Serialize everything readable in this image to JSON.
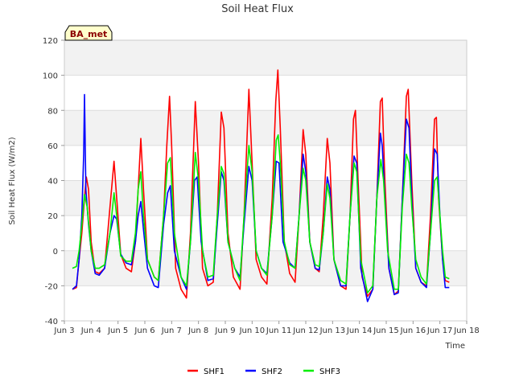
{
  "chart_data": {
    "type": "line",
    "title": "Soil Heat Flux",
    "xlabel": "Time",
    "ylabel": "Soil Heat Flux (W/m2)",
    "badge": "BA_met",
    "xlim": [
      3,
      18
    ],
    "ylim": [
      -40,
      120
    ],
    "yticks": [
      -40,
      -20,
      0,
      20,
      40,
      60,
      80,
      100,
      120
    ],
    "xticks": [
      {
        "v": 3,
        "label": "Jun 3"
      },
      {
        "v": 4,
        "label": "Jun 4"
      },
      {
        "v": 5,
        "label": "Jun 5"
      },
      {
        "v": 6,
        "label": "Jun 6"
      },
      {
        "v": 7,
        "label": "Jun 7"
      },
      {
        "v": 8,
        "label": "Jun 8"
      },
      {
        "v": 9,
        "label": "Jun 9"
      },
      {
        "v": 10,
        "label": "Jun 10"
      },
      {
        "v": 11,
        "label": "Jun 11"
      },
      {
        "v": 12,
        "label": "Jun 12"
      },
      {
        "v": 13,
        "label": "Jun 13"
      },
      {
        "v": 14,
        "label": "Jun 14"
      },
      {
        "v": 15,
        "label": "Jun 15"
      },
      {
        "v": 16,
        "label": "Jun 16"
      },
      {
        "v": 17,
        "label": "Jun 17"
      },
      {
        "v": 18,
        "label": "Jun 18"
      }
    ],
    "grid": true,
    "legend_position": "bottom-center",
    "series": [
      {
        "name": "SHF1",
        "color": "#ff0000",
        "points": [
          [
            3.3,
            -22
          ],
          [
            3.45,
            -21
          ],
          [
            3.55,
            -5
          ],
          [
            3.65,
            10
          ],
          [
            3.75,
            30
          ],
          [
            3.82,
            42
          ],
          [
            3.9,
            35
          ],
          [
            4.0,
            5
          ],
          [
            4.15,
            -12
          ],
          [
            4.3,
            -13
          ],
          [
            4.5,
            -10
          ],
          [
            4.7,
            25
          ],
          [
            4.85,
            51
          ],
          [
            4.95,
            30
          ],
          [
            5.1,
            -2
          ],
          [
            5.3,
            -10
          ],
          [
            5.5,
            -12
          ],
          [
            5.65,
            5
          ],
          [
            5.75,
            35
          ],
          [
            5.85,
            64
          ],
          [
            5.95,
            35
          ],
          [
            6.1,
            -5
          ],
          [
            6.35,
            -15
          ],
          [
            6.5,
            -17
          ],
          [
            6.7,
            20
          ],
          [
            6.82,
            60
          ],
          [
            6.92,
            88
          ],
          [
            7.0,
            60
          ],
          [
            7.15,
            -10
          ],
          [
            7.35,
            -22
          ],
          [
            7.55,
            -27
          ],
          [
            7.7,
            10
          ],
          [
            7.88,
            85
          ],
          [
            8.0,
            50
          ],
          [
            8.15,
            -10
          ],
          [
            8.35,
            -20
          ],
          [
            8.55,
            -18
          ],
          [
            8.7,
            20
          ],
          [
            8.85,
            79
          ],
          [
            8.95,
            70
          ],
          [
            9.1,
            10
          ],
          [
            9.3,
            -15
          ],
          [
            9.55,
            -22
          ],
          [
            9.7,
            20
          ],
          [
            9.88,
            92
          ],
          [
            10.0,
            50
          ],
          [
            10.15,
            -5
          ],
          [
            10.35,
            -15
          ],
          [
            10.55,
            -19
          ],
          [
            10.75,
            30
          ],
          [
            10.88,
            85
          ],
          [
            10.96,
            103
          ],
          [
            11.05,
            70
          ],
          [
            11.2,
            5
          ],
          [
            11.4,
            -13
          ],
          [
            11.6,
            -18
          ],
          [
            11.75,
            20
          ],
          [
            11.9,
            69
          ],
          [
            12.0,
            55
          ],
          [
            12.15,
            5
          ],
          [
            12.35,
            -10
          ],
          [
            12.5,
            -12
          ],
          [
            12.65,
            20
          ],
          [
            12.8,
            64
          ],
          [
            12.9,
            50
          ],
          [
            13.05,
            -5
          ],
          [
            13.3,
            -20
          ],
          [
            13.5,
            -22
          ],
          [
            13.65,
            20
          ],
          [
            13.78,
            75
          ],
          [
            13.85,
            80
          ],
          [
            13.95,
            40
          ],
          [
            14.1,
            -15
          ],
          [
            14.3,
            -26
          ],
          [
            14.5,
            -22
          ],
          [
            14.65,
            30
          ],
          [
            14.78,
            85
          ],
          [
            14.85,
            87
          ],
          [
            14.95,
            40
          ],
          [
            15.1,
            -10
          ],
          [
            15.3,
            -25
          ],
          [
            15.45,
            -23
          ],
          [
            15.6,
            30
          ],
          [
            15.75,
            88
          ],
          [
            15.82,
            92
          ],
          [
            15.95,
            40
          ],
          [
            16.1,
            -10
          ],
          [
            16.3,
            -18
          ],
          [
            16.5,
            -20
          ],
          [
            16.65,
            20
          ],
          [
            16.8,
            75
          ],
          [
            16.87,
            76
          ],
          [
            16.95,
            30
          ],
          [
            17.1,
            -5
          ],
          [
            17.2,
            -17
          ],
          [
            17.35,
            -18
          ]
        ]
      },
      {
        "name": "SHF2",
        "color": "#0000ff",
        "points": [
          [
            3.3,
            -22
          ],
          [
            3.45,
            -20
          ],
          [
            3.55,
            -5
          ],
          [
            3.65,
            20
          ],
          [
            3.72,
            55
          ],
          [
            3.75,
            89
          ],
          [
            3.8,
            35
          ],
          [
            3.9,
            15
          ],
          [
            4.0,
            0
          ],
          [
            4.15,
            -13
          ],
          [
            4.3,
            -14
          ],
          [
            4.5,
            -10
          ],
          [
            4.7,
            10
          ],
          [
            4.85,
            20
          ],
          [
            4.95,
            18
          ],
          [
            5.1,
            -2
          ],
          [
            5.3,
            -7
          ],
          [
            5.5,
            -8
          ],
          [
            5.65,
            5
          ],
          [
            5.75,
            20
          ],
          [
            5.85,
            28
          ],
          [
            5.95,
            12
          ],
          [
            6.1,
            -10
          ],
          [
            6.35,
            -20
          ],
          [
            6.5,
            -21
          ],
          [
            6.7,
            15
          ],
          [
            6.85,
            33
          ],
          [
            6.95,
            37
          ],
          [
            7.1,
            0
          ],
          [
            7.35,
            -15
          ],
          [
            7.55,
            -22
          ],
          [
            7.7,
            5
          ],
          [
            7.85,
            40
          ],
          [
            7.95,
            42
          ],
          [
            8.1,
            5
          ],
          [
            8.35,
            -17
          ],
          [
            8.55,
            -16
          ],
          [
            8.7,
            15
          ],
          [
            8.85,
            45
          ],
          [
            8.95,
            40
          ],
          [
            9.1,
            5
          ],
          [
            9.35,
            -10
          ],
          [
            9.55,
            -15
          ],
          [
            9.7,
            15
          ],
          [
            9.88,
            48
          ],
          [
            10.0,
            40
          ],
          [
            10.15,
            0
          ],
          [
            10.35,
            -10
          ],
          [
            10.55,
            -13
          ],
          [
            10.75,
            20
          ],
          [
            10.9,
            51
          ],
          [
            11.0,
            50
          ],
          [
            11.15,
            5
          ],
          [
            11.4,
            -7
          ],
          [
            11.6,
            -10
          ],
          [
            11.75,
            20
          ],
          [
            11.9,
            55
          ],
          [
            12.0,
            45
          ],
          [
            12.15,
            5
          ],
          [
            12.35,
            -10
          ],
          [
            12.5,
            -11
          ],
          [
            12.65,
            10
          ],
          [
            12.8,
            42
          ],
          [
            12.9,
            35
          ],
          [
            13.05,
            -5
          ],
          [
            13.3,
            -20
          ],
          [
            13.5,
            -20
          ],
          [
            13.65,
            20
          ],
          [
            13.8,
            54
          ],
          [
            13.9,
            50
          ],
          [
            14.05,
            -10
          ],
          [
            14.3,
            -29
          ],
          [
            14.5,
            -22
          ],
          [
            14.65,
            30
          ],
          [
            14.78,
            67
          ],
          [
            14.85,
            60
          ],
          [
            14.95,
            30
          ],
          [
            15.1,
            -10
          ],
          [
            15.3,
            -25
          ],
          [
            15.45,
            -24
          ],
          [
            15.6,
            30
          ],
          [
            15.75,
            75
          ],
          [
            15.85,
            70
          ],
          [
            15.95,
            30
          ],
          [
            16.1,
            -10
          ],
          [
            16.3,
            -18
          ],
          [
            16.5,
            -21
          ],
          [
            16.65,
            10
          ],
          [
            16.8,
            58
          ],
          [
            16.9,
            55
          ],
          [
            17.0,
            20
          ],
          [
            17.1,
            -5
          ],
          [
            17.2,
            -21
          ],
          [
            17.35,
            -21
          ]
        ]
      },
      {
        "name": "SHF3",
        "color": "#00ee00",
        "points": [
          [
            3.3,
            -10
          ],
          [
            3.45,
            -9
          ],
          [
            3.55,
            0
          ],
          [
            3.65,
            15
          ],
          [
            3.75,
            32
          ],
          [
            3.85,
            25
          ],
          [
            4.0,
            0
          ],
          [
            4.15,
            -10
          ],
          [
            4.3,
            -10
          ],
          [
            4.5,
            -8
          ],
          [
            4.7,
            10
          ],
          [
            4.85,
            33
          ],
          [
            4.95,
            20
          ],
          [
            5.1,
            -3
          ],
          [
            5.3,
            -6
          ],
          [
            5.5,
            -6
          ],
          [
            5.65,
            10
          ],
          [
            5.75,
            35
          ],
          [
            5.85,
            45
          ],
          [
            5.95,
            20
          ],
          [
            6.1,
            -5
          ],
          [
            6.35,
            -15
          ],
          [
            6.5,
            -17
          ],
          [
            6.7,
            20
          ],
          [
            6.85,
            50
          ],
          [
            6.95,
            53
          ],
          [
            7.1,
            10
          ],
          [
            7.35,
            -15
          ],
          [
            7.55,
            -20
          ],
          [
            7.7,
            5
          ],
          [
            7.88,
            56
          ],
          [
            8.0,
            40
          ],
          [
            8.15,
            0
          ],
          [
            8.35,
            -15
          ],
          [
            8.55,
            -14
          ],
          [
            8.7,
            20
          ],
          [
            8.85,
            48
          ],
          [
            8.95,
            44
          ],
          [
            9.1,
            5
          ],
          [
            9.35,
            -10
          ],
          [
            9.55,
            -17
          ],
          [
            9.7,
            20
          ],
          [
            9.88,
            60
          ],
          [
            10.0,
            45
          ],
          [
            10.15,
            0
          ],
          [
            10.35,
            -10
          ],
          [
            10.55,
            -14
          ],
          [
            10.75,
            20
          ],
          [
            10.9,
            63
          ],
          [
            10.97,
            66
          ],
          [
            11.05,
            50
          ],
          [
            11.2,
            5
          ],
          [
            11.4,
            -8
          ],
          [
            11.6,
            -10
          ],
          [
            11.75,
            20
          ],
          [
            11.9,
            47
          ],
          [
            12.0,
            40
          ],
          [
            12.15,
            5
          ],
          [
            12.35,
            -8
          ],
          [
            12.5,
            -9
          ],
          [
            12.65,
            10
          ],
          [
            12.8,
            38
          ],
          [
            12.9,
            30
          ],
          [
            13.05,
            -5
          ],
          [
            13.3,
            -17
          ],
          [
            13.5,
            -19
          ],
          [
            13.65,
            20
          ],
          [
            13.8,
            50
          ],
          [
            13.9,
            45
          ],
          [
            14.05,
            -5
          ],
          [
            14.3,
            -24
          ],
          [
            14.5,
            -20
          ],
          [
            14.65,
            30
          ],
          [
            14.8,
            52
          ],
          [
            14.9,
            40
          ],
          [
            15.05,
            0
          ],
          [
            15.3,
            -22
          ],
          [
            15.45,
            -22
          ],
          [
            15.6,
            25
          ],
          [
            15.75,
            55
          ],
          [
            15.85,
            50
          ],
          [
            15.95,
            25
          ],
          [
            16.1,
            -5
          ],
          [
            16.3,
            -15
          ],
          [
            16.5,
            -19
          ],
          [
            16.65,
            10
          ],
          [
            16.8,
            40
          ],
          [
            16.9,
            42
          ],
          [
            17.0,
            20
          ],
          [
            17.1,
            0
          ],
          [
            17.2,
            -15
          ],
          [
            17.35,
            -16
          ]
        ]
      }
    ]
  }
}
